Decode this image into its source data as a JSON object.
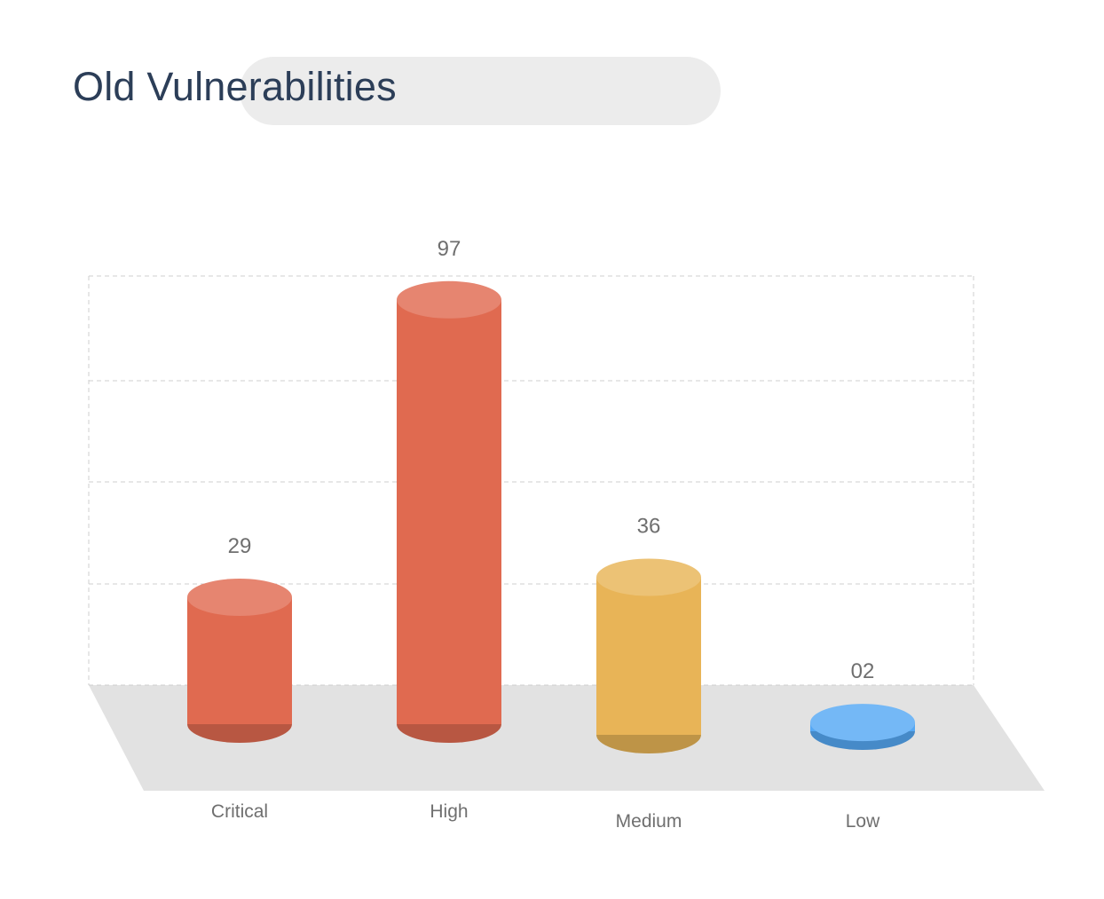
{
  "title": "Old Vulnerabilities",
  "chart_data": {
    "type": "bar",
    "categories": [
      "Critical",
      "High",
      "Medium",
      "Low"
    ],
    "values": [
      29,
      97,
      36,
      2
    ],
    "value_labels": [
      "29",
      "97",
      "36",
      "02"
    ],
    "colors": [
      "#e06a50",
      "#e06a50",
      "#e8b457",
      "#55a8f4"
    ],
    "grid": true,
    "legend": "none"
  }
}
